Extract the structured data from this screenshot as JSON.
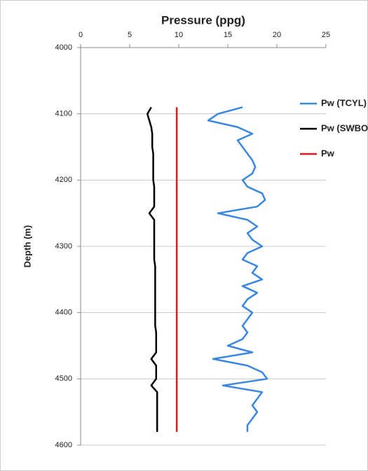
{
  "chart_data": {
    "type": "line",
    "title": "Pressure (ppg)",
    "y_label": "Depth (m)",
    "depth": [
      4090,
      4100,
      4110,
      4120,
      4130,
      4140,
      4150,
      4160,
      4170,
      4180,
      4190,
      4200,
      4210,
      4220,
      4230,
      4240,
      4250,
      4260,
      4270,
      4280,
      4290,
      4300,
      4310,
      4320,
      4330,
      4340,
      4350,
      4360,
      4370,
      4380,
      4390,
      4400,
      4410,
      4420,
      4430,
      4440,
      4450,
      4460,
      4470,
      4480,
      4490,
      4500,
      4510,
      4520,
      4530,
      4540,
      4550,
      4560,
      4570,
      4580
    ],
    "series": [
      {
        "name": "Pw (TCYL)",
        "color": "#3a87e0",
        "values": [
          16.5,
          14,
          13,
          16,
          17.5,
          16,
          16.5,
          17,
          17.5,
          17.8,
          17.5,
          16.5,
          17,
          18.5,
          18.8,
          18,
          14,
          17,
          18,
          17,
          17.5,
          18.5,
          17,
          16.5,
          18,
          17.5,
          18.5,
          16.5,
          18,
          17,
          16.5,
          17.5,
          17,
          16.5,
          17,
          16.5,
          15,
          17.5,
          13.5,
          17,
          18.5,
          19,
          14.5,
          18.5,
          18,
          17.5,
          18,
          17.5,
          17,
          17
        ]
      },
      {
        "name": "Pw (SWBO)",
        "color": "#000000",
        "values": [
          7.2,
          6.8,
          7.0,
          7.2,
          7.3,
          7.3,
          7.3,
          7.4,
          7.4,
          7.4,
          7.4,
          7.4,
          7.5,
          7.5,
          7.5,
          7.5,
          7.0,
          7.5,
          7.5,
          7.5,
          7.5,
          7.5,
          7.5,
          7.5,
          7.6,
          7.6,
          7.6,
          7.6,
          7.6,
          7.6,
          7.6,
          7.6,
          7.6,
          7.6,
          7.7,
          7.7,
          7.7,
          7.7,
          7.2,
          7.7,
          7.7,
          7.7,
          7.2,
          7.8,
          7.8,
          7.8,
          7.8,
          7.8,
          7.8,
          7.8
        ]
      },
      {
        "name": "Pw",
        "color": "#e31a1c",
        "values": [
          9.8,
          9.8,
          9.8,
          9.8,
          9.8,
          9.8,
          9.8,
          9.8,
          9.8,
          9.8,
          9.8,
          9.8,
          9.8,
          9.8,
          9.8,
          9.8,
          9.8,
          9.8,
          9.8,
          9.8,
          9.8,
          9.8,
          9.8,
          9.8,
          9.8,
          9.8,
          9.8,
          9.8,
          9.8,
          9.8,
          9.8,
          9.8,
          9.8,
          9.8,
          9.8,
          9.8,
          9.8,
          9.8,
          9.8,
          9.8,
          9.8,
          9.8,
          9.8,
          9.8,
          9.8,
          9.8,
          9.8,
          9.8,
          9.8,
          9.8
        ]
      }
    ],
    "xlim": [
      0,
      25
    ],
    "xticks": [
      0,
      5,
      10,
      15,
      20,
      25
    ],
    "ylim": [
      4000,
      4600
    ],
    "yticks": [
      4000,
      4100,
      4200,
      4300,
      4400,
      4500,
      4600
    ],
    "y_inverted": true,
    "x_axis_position": "top",
    "grid": true,
    "legend": "right"
  }
}
